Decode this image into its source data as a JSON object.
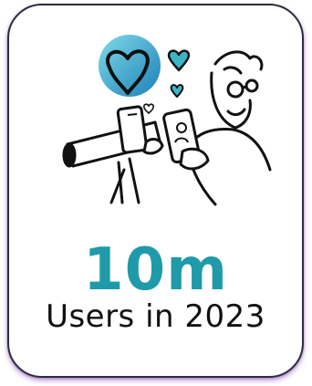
{
  "card": {
    "stat_value": "10m",
    "stat_caption": "Users in 2023"
  },
  "illustration": {
    "subject": "person-looking-through-telescope-with-phones-and-hearts"
  },
  "colors": {
    "accent": "#1f9aa8",
    "heart_gradient_start": "#7fdbe8",
    "heart_gradient_end": "#1d7fb8",
    "card_border": "#2a2f3f",
    "card_shadow": "#9650be"
  }
}
